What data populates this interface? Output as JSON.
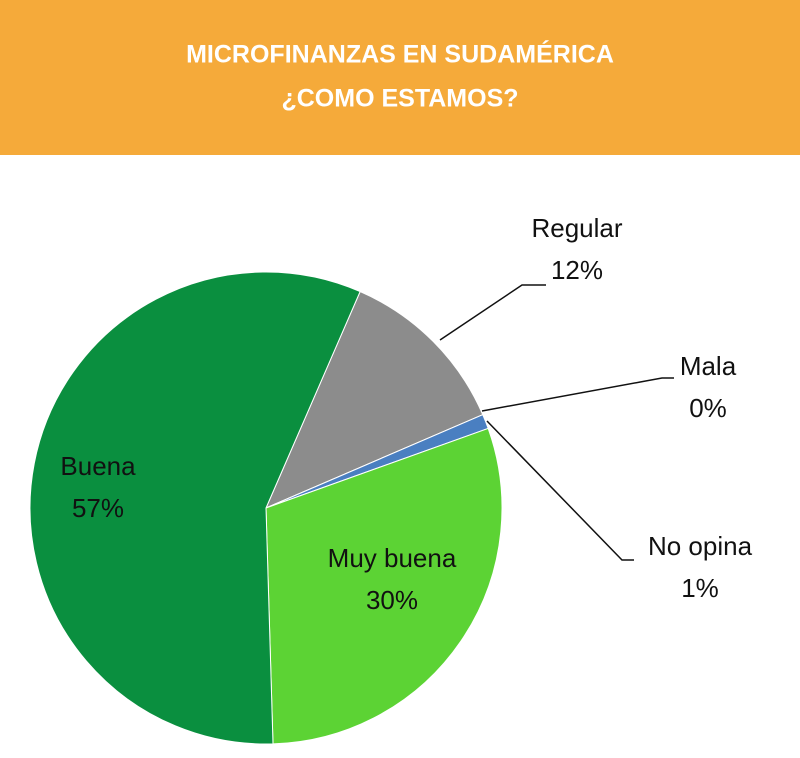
{
  "chart_data": {
    "type": "pie",
    "title": "MICROFINANZAS EN SUDAMÉRICA",
    "subtitle": "¿COMO ESTAMOS?",
    "categories": [
      "Regular",
      "Mala",
      "No opina",
      "Muy buena",
      "Buena"
    ],
    "values": [
      12,
      0,
      1,
      30,
      57
    ],
    "value_labels": [
      "12%",
      "0%",
      "1%",
      "30%",
      "57%"
    ],
    "colors": [
      "#8c8c8c",
      "#c0504d",
      "#4a7fc1",
      "#5cd334",
      "#0a8f3f"
    ]
  }
}
